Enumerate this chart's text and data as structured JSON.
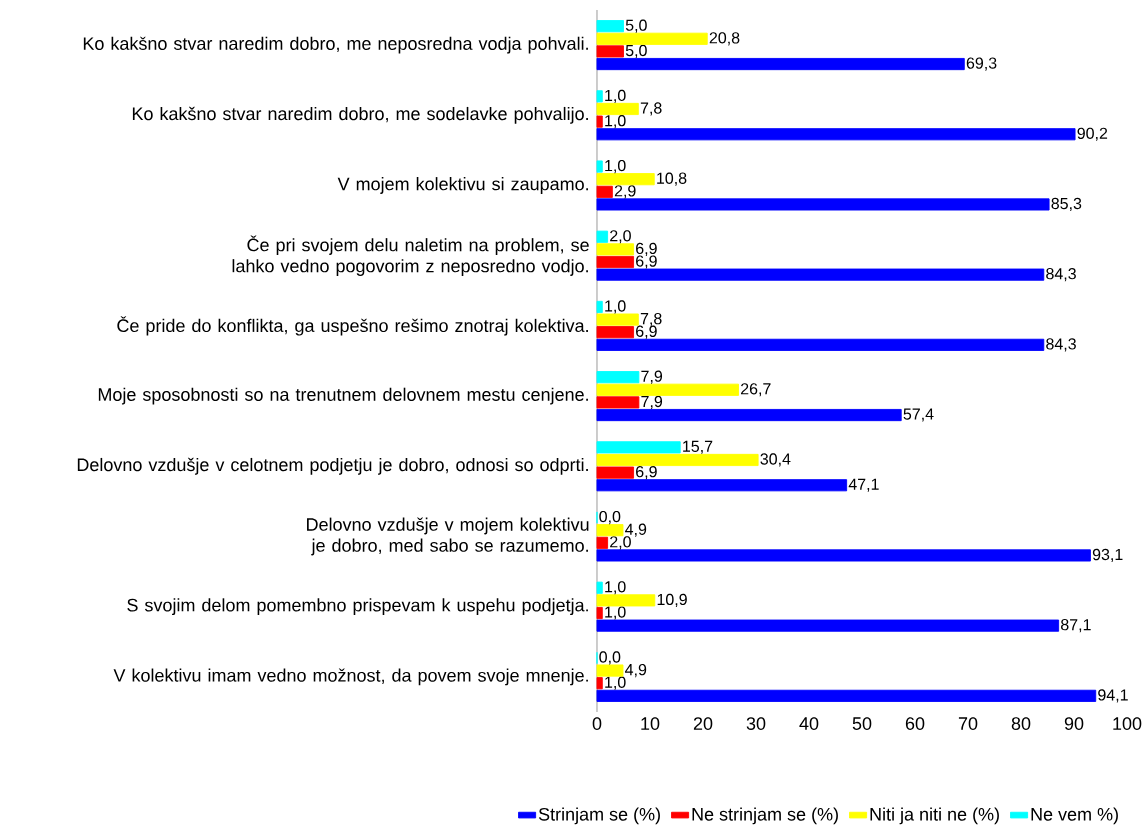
{
  "chart_data": {
    "type": "bar",
    "orientation": "horizontal",
    "categories": [
      "Ko kakšno stvar naredim dobro, me neposredna vodja pohvali.",
      "Ko kakšno stvar naredim dobro, me sodelavke pohvalijo.",
      "V mojem kolektivu si zaupamo.",
      "Če pri svojem delu naletim na problem, se lahko vedno pogovorim z neposredno vodjo.",
      "Če pride do konflikta, ga uspešno rešimo znotraj kolektiva.",
      "Moje sposobnosti so na trenutnem delovnem mestu cenjene.",
      "Delovno vzdušje v celotnem podjetju je dobro, odnosi so odprti.",
      "Delovno vzdušje v mojem kolektivu je dobro, med sabo se razumemo.",
      "S svojim delom pomembno prispevam k uspehu podjetja.",
      "V kolektivu imam vedno možnost, da povem svoje mnenje."
    ],
    "series": [
      {
        "name": "Strinjam se (%)",
        "color": "#0000ff",
        "values": [
          69.3,
          90.2,
          85.3,
          84.3,
          84.3,
          57.4,
          47.1,
          93.1,
          87.1,
          94.1
        ],
        "value_labels": [
          "69,3",
          "90,2",
          "85,3",
          "84,3",
          "84,3",
          "57,4",
          "47,1",
          "93,1",
          "87,1",
          "94,1"
        ]
      },
      {
        "name": "Ne strinjam se (%)",
        "color": "#ff0000",
        "values": [
          5.0,
          1.0,
          2.9,
          6.9,
          6.9,
          7.9,
          6.9,
          2.0,
          1.0,
          1.0
        ],
        "value_labels": [
          "5,0",
          "1,0",
          "2,9",
          "6,9",
          "6,9",
          "7,9",
          "6,9",
          "2,0",
          "1,0",
          "1,0"
        ]
      },
      {
        "name": "Niti ja niti ne (%)",
        "color": "#ffff00",
        "values": [
          20.8,
          7.8,
          10.8,
          6.9,
          7.8,
          26.7,
          30.4,
          4.9,
          10.9,
          4.9
        ],
        "value_labels": [
          "20,8",
          "7,8",
          "10,8",
          "6,9",
          "7,8",
          "26,7",
          "30,4",
          "4,9",
          "10,9",
          "4,9"
        ]
      },
      {
        "name": "Ne vem %)",
        "color": "#00ffff",
        "values": [
          5.0,
          1.0,
          1.0,
          2.0,
          1.0,
          7.9,
          15.7,
          0.0,
          1.0,
          0.0
        ],
        "value_labels": [
          "5,0",
          "1,0",
          "1,0",
          "2,0",
          "1,0",
          "7,9",
          "15,7",
          "0,0",
          "1,0",
          "0,0"
        ]
      }
    ],
    "xlim": [
      0,
      100
    ],
    "xticks": [
      0,
      10,
      20,
      30,
      40,
      50,
      60,
      70,
      80,
      90,
      100
    ],
    "grid": false,
    "legend": "bottom"
  }
}
